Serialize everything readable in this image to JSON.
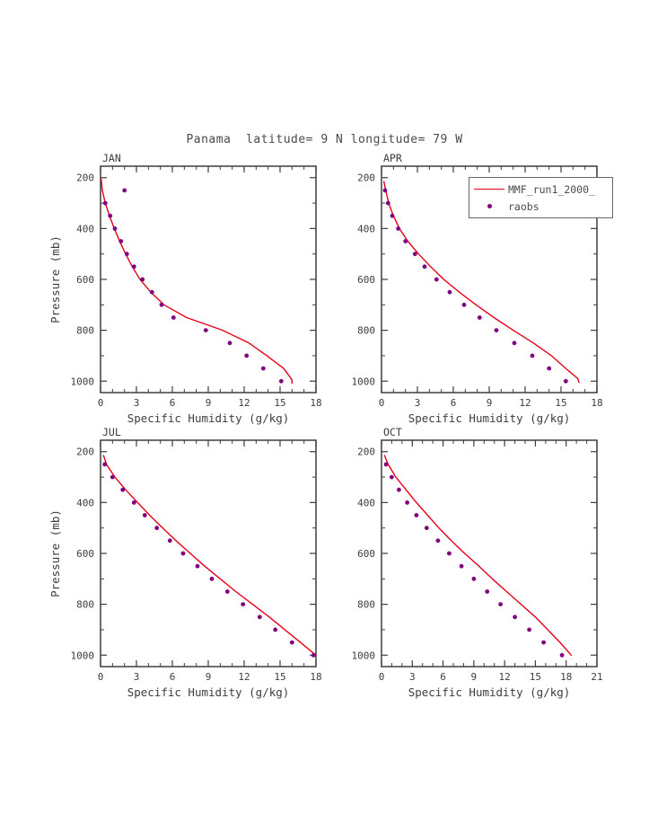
{
  "title": "Panama  latitude= 9 N longitude= 79 W",
  "colors": {
    "model_line": "#e60019",
    "raobs_dot": "#800080",
    "axis": "#3d3d3d",
    "background": "#ffffff"
  },
  "legend": {
    "entries": [
      {
        "label": "MMF_run1_2000_",
        "marker": "line",
        "color": "#e60019"
      },
      {
        "label": "raobs",
        "marker": "dot",
        "color": "#800080"
      }
    ]
  },
  "chart_data": [
    {
      "type": "line",
      "panel": "JAN",
      "xlabel": "Specific Humidity (g/kg)",
      "ylabel": "Pressure (mb)",
      "xlim": [
        0,
        18
      ],
      "xticks": [
        0,
        3,
        6,
        9,
        12,
        15,
        18
      ],
      "xtick_minor_step": 1,
      "ylim": [
        155,
        1045
      ],
      "yticks": [
        200,
        400,
        600,
        800,
        1000
      ],
      "ytick_minor_step": 100,
      "y_axis_inverted": true,
      "series": [
        {
          "name": "MMF_run1_2000_",
          "kind": "line",
          "color": "#e60019",
          "points": [
            [
              0.05,
              205
            ],
            [
              0.15,
              250
            ],
            [
              0.4,
              300
            ],
            [
              0.75,
              350
            ],
            [
              1.15,
              400
            ],
            [
              1.6,
              450
            ],
            [
              2.1,
              500
            ],
            [
              2.65,
              550
            ],
            [
              3.3,
              600
            ],
            [
              4.2,
              650
            ],
            [
              5.3,
              700
            ],
            [
              7.2,
              750
            ],
            [
              10.2,
              800
            ],
            [
              12.4,
              850
            ],
            [
              13.9,
              900
            ],
            [
              15.3,
              950
            ],
            [
              16.0,
              995
            ],
            [
              16.0,
              1008
            ]
          ]
        },
        {
          "name": "raobs",
          "kind": "scatter",
          "color": "#800080",
          "points": [
            [
              2.0,
              250
            ],
            [
              0.4,
              300
            ],
            [
              0.8,
              350
            ],
            [
              1.2,
              400
            ],
            [
              1.7,
              450
            ],
            [
              2.2,
              500
            ],
            [
              2.8,
              550
            ],
            [
              3.5,
              600
            ],
            [
              4.3,
              650
            ],
            [
              5.1,
              700
            ],
            [
              6.1,
              750
            ],
            [
              8.8,
              800
            ],
            [
              10.8,
              850
            ],
            [
              12.2,
              900
            ],
            [
              13.6,
              950
            ],
            [
              15.1,
              1000
            ]
          ]
        }
      ]
    },
    {
      "type": "line",
      "panel": "APR",
      "xlabel": "Specific Humidity (g/kg)",
      "ylabel": "",
      "xlim": [
        0,
        18
      ],
      "xticks": [
        0,
        3,
        6,
        9,
        12,
        15,
        18
      ],
      "xtick_minor_step": 1,
      "ylim": [
        155,
        1045
      ],
      "yticks": [
        200,
        400,
        600,
        800,
        1000
      ],
      "ytick_minor_step": 100,
      "y_axis_inverted": true,
      "series": [
        {
          "name": "MMF_run1_2000_",
          "kind": "line",
          "color": "#e60019",
          "points": [
            [
              0.2,
              215
            ],
            [
              0.35,
              250
            ],
            [
              0.6,
              300
            ],
            [
              1.0,
              350
            ],
            [
              1.5,
              400
            ],
            [
              2.2,
              450
            ],
            [
              3.1,
              500
            ],
            [
              4.1,
              550
            ],
            [
              5.2,
              600
            ],
            [
              6.5,
              650
            ],
            [
              7.9,
              700
            ],
            [
              9.4,
              750
            ],
            [
              11.0,
              800
            ],
            [
              12.7,
              850
            ],
            [
              14.2,
              900
            ],
            [
              15.4,
              950
            ],
            [
              16.4,
              990
            ],
            [
              16.5,
              1005
            ]
          ]
        },
        {
          "name": "raobs",
          "kind": "scatter",
          "color": "#800080",
          "points": [
            [
              0.3,
              250
            ],
            [
              0.55,
              300
            ],
            [
              0.9,
              350
            ],
            [
              1.4,
              400
            ],
            [
              2.0,
              450
            ],
            [
              2.8,
              500
            ],
            [
              3.6,
              550
            ],
            [
              4.6,
              600
            ],
            [
              5.7,
              650
            ],
            [
              6.9,
              700
            ],
            [
              8.2,
              750
            ],
            [
              9.6,
              800
            ],
            [
              11.1,
              850
            ],
            [
              12.6,
              900
            ],
            [
              14.0,
              950
            ],
            [
              15.4,
              1000
            ]
          ]
        }
      ]
    },
    {
      "type": "line",
      "panel": "JUL",
      "xlabel": "Specific Humidity (g/kg)",
      "ylabel": "Pressure (mb)",
      "xlim": [
        0,
        18
      ],
      "xticks": [
        0,
        3,
        6,
        9,
        12,
        15,
        18
      ],
      "xtick_minor_step": 1,
      "ylim": [
        155,
        1045
      ],
      "yticks": [
        200,
        400,
        600,
        800,
        1000
      ],
      "ytick_minor_step": 100,
      "y_axis_inverted": true,
      "series": [
        {
          "name": "MMF_run1_2000_",
          "kind": "line",
          "color": "#e60019",
          "points": [
            [
              0.25,
              215
            ],
            [
              0.5,
              250
            ],
            [
              1.2,
              300
            ],
            [
              2.1,
              350
            ],
            [
              3.1,
              400
            ],
            [
              4.1,
              450
            ],
            [
              5.2,
              500
            ],
            [
              6.3,
              550
            ],
            [
              7.5,
              600
            ],
            [
              8.7,
              650
            ],
            [
              10.0,
              700
            ],
            [
              11.3,
              750
            ],
            [
              12.7,
              800
            ],
            [
              14.1,
              850
            ],
            [
              15.4,
              900
            ],
            [
              16.7,
              950
            ],
            [
              18.0,
              1000
            ]
          ]
        },
        {
          "name": "raobs",
          "kind": "scatter",
          "color": "#800080",
          "points": [
            [
              0.35,
              250
            ],
            [
              1.0,
              300
            ],
            [
              1.85,
              350
            ],
            [
              2.8,
              400
            ],
            [
              3.7,
              450
            ],
            [
              4.7,
              500
            ],
            [
              5.8,
              550
            ],
            [
              6.9,
              600
            ],
            [
              8.1,
              650
            ],
            [
              9.3,
              700
            ],
            [
              10.6,
              750
            ],
            [
              11.9,
              800
            ],
            [
              13.3,
              850
            ],
            [
              14.6,
              900
            ],
            [
              16.0,
              950
            ],
            [
              17.8,
              1000
            ]
          ]
        }
      ]
    },
    {
      "type": "line",
      "panel": "OCT",
      "xlabel": "Specific Humidity (g/kg)",
      "ylabel": "",
      "xlim": [
        0,
        21
      ],
      "xticks": [
        0,
        3,
        6,
        9,
        12,
        15,
        18,
        21
      ],
      "xtick_minor_step": 1,
      "ylim": [
        155,
        1045
      ],
      "yticks": [
        200,
        400,
        600,
        800,
        1000
      ],
      "ytick_minor_step": 100,
      "y_axis_inverted": true,
      "series": [
        {
          "name": "MMF_run1_2000_",
          "kind": "line",
          "color": "#e60019",
          "points": [
            [
              0.3,
              215
            ],
            [
              0.65,
              250
            ],
            [
              1.4,
              300
            ],
            [
              2.4,
              350
            ],
            [
              3.4,
              400
            ],
            [
              4.5,
              450
            ],
            [
              5.6,
              500
            ],
            [
              6.8,
              550
            ],
            [
              8.1,
              600
            ],
            [
              9.5,
              650
            ],
            [
              10.8,
              700
            ],
            [
              12.2,
              750
            ],
            [
              13.6,
              800
            ],
            [
              15.0,
              850
            ],
            [
              16.2,
              900
            ],
            [
              17.4,
              950
            ],
            [
              18.5,
              1000
            ]
          ]
        },
        {
          "name": "raobs",
          "kind": "scatter",
          "color": "#800080",
          "points": [
            [
              0.45,
              250
            ],
            [
              1.0,
              300
            ],
            [
              1.7,
              350
            ],
            [
              2.5,
              400
            ],
            [
              3.4,
              450
            ],
            [
              4.4,
              500
            ],
            [
              5.5,
              550
            ],
            [
              6.6,
              600
            ],
            [
              7.8,
              650
            ],
            [
              9.0,
              700
            ],
            [
              10.3,
              750
            ],
            [
              11.6,
              800
            ],
            [
              13.0,
              850
            ],
            [
              14.4,
              900
            ],
            [
              15.8,
              950
            ],
            [
              17.6,
              1000
            ]
          ]
        }
      ]
    }
  ]
}
